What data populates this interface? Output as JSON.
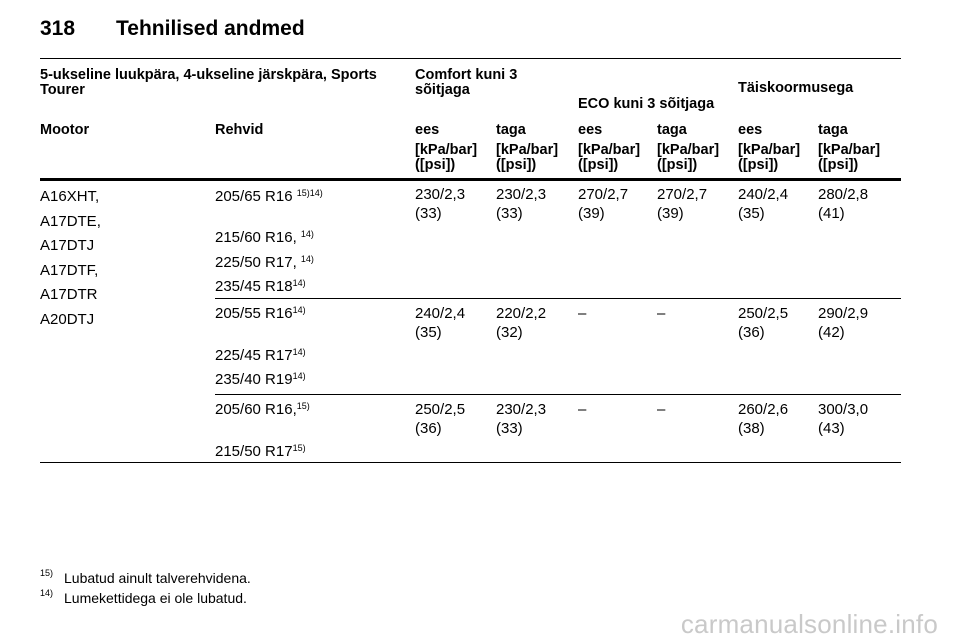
{
  "page": {
    "number": "318",
    "title": "Tehnilised andmed"
  },
  "table": {
    "group_header": {
      "vehicle": "5-ukseline luukpära, 4-ukseline järskpära, Sports Tourer",
      "comfort": "Comfort kuni 3 sõitjaga",
      "eco": "ECO kuni 3 sõitjaga",
      "full": "Täiskoormusega"
    },
    "columns": {
      "engine": "Mootor",
      "tyres": "Rehvid",
      "front1": "ees",
      "rear1": "taga",
      "front2": "ees",
      "rear2": "taga",
      "front3": "ees",
      "rear3": "taga"
    },
    "unit_label": "[kPa/bar] ([psi])",
    "engines": [
      "A16XHT,",
      "A17DTE,",
      "A17DTJ",
      "A17DTF,",
      "A17DTR",
      "A20DTJ"
    ],
    "groups": [
      {
        "tyres": [
          {
            "size": "205/65 R16 ",
            "note": "15)14)"
          },
          {
            "size": "215/60 R16, ",
            "note": "14)"
          },
          {
            "size": "225/50 R17, ",
            "note": "14)"
          },
          {
            "size": "235/45 R18",
            "note": "14)"
          }
        ],
        "pressures": [
          "230/2,3 (33)",
          "230/2,3 (33)",
          "270/2,7 (39)",
          "270/2,7 (39)",
          "240/2,4 (35)",
          "280/2,8 (41)"
        ]
      },
      {
        "tyres": [
          {
            "size": "205/55 R16",
            "note": "14)"
          },
          {
            "size": "225/45 R17",
            "note": "14)"
          },
          {
            "size": "235/40 R19",
            "note": "14)"
          }
        ],
        "pressures": [
          "240/2,4 (35)",
          "220/2,2 (32)",
          "–",
          "–",
          "250/2,5 (36)",
          "290/2,9 (42)"
        ]
      },
      {
        "tyres": [
          {
            "size": "205/60 R16,",
            "note": "15)"
          },
          {
            "size": "215/50 R17",
            "note": "15)"
          }
        ],
        "pressures": [
          "250/2,5 (36)",
          "230/2,3 (33)",
          "–",
          "–",
          "260/2,6 (38)",
          "300/3,0 (43)"
        ]
      }
    ]
  },
  "footnotes": [
    {
      "mark": "15)",
      "text": "Lubatud ainult talverehvidena."
    },
    {
      "mark": "14)",
      "text": "Lumekettidega ei ole lubatud."
    }
  ],
  "watermark": "carmanualsonline.info"
}
